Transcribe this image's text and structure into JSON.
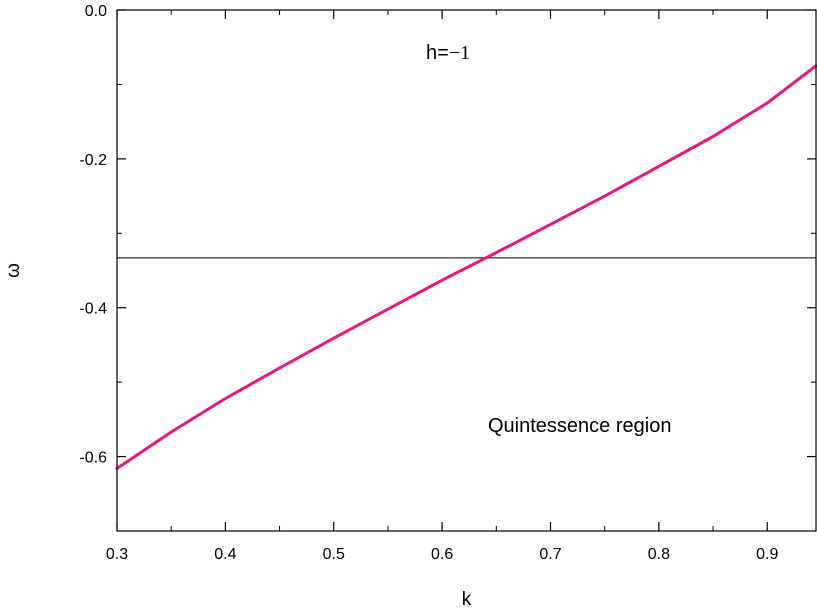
{
  "chart_data": {
    "type": "line",
    "title": "",
    "xlabel": "k",
    "ylabel": "ω",
    "xlim": [
      0.3,
      0.945
    ],
    "ylim": [
      -0.7,
      0.0
    ],
    "x_ticks": [
      0.3,
      0.4,
      0.5,
      0.6,
      0.7,
      0.8,
      0.9
    ],
    "x_tick_labels": [
      "0.3",
      "0.4",
      "0.5",
      "0.6",
      "0.7",
      "0.8",
      "0.9"
    ],
    "y_ticks": [
      0.0,
      -0.2,
      -0.4,
      -0.6
    ],
    "y_tick_labels": [
      "0.0",
      "-0.2",
      "-0.4",
      "-0.6"
    ],
    "grid": false,
    "series": [
      {
        "color": "#e8177f",
        "x": [
          0.3,
          0.35,
          0.4,
          0.45,
          0.5,
          0.55,
          0.6,
          0.65,
          0.7,
          0.75,
          0.8,
          0.85,
          0.9,
          0.945
        ],
        "y": [
          -0.616,
          -0.567,
          -0.522,
          -0.481,
          -0.441,
          -0.402,
          -0.363,
          -0.326,
          -0.288,
          -0.25,
          -0.21,
          -0.17,
          -0.125,
          -0.075
        ]
      }
    ],
    "reference_lines": [
      {
        "axis": "y",
        "value": -0.333,
        "color": "#000000"
      }
    ],
    "annotations": [
      {
        "text_main": "h=",
        "text_math": "−1"
      },
      {
        "text_main": "Quintessence region"
      }
    ]
  }
}
